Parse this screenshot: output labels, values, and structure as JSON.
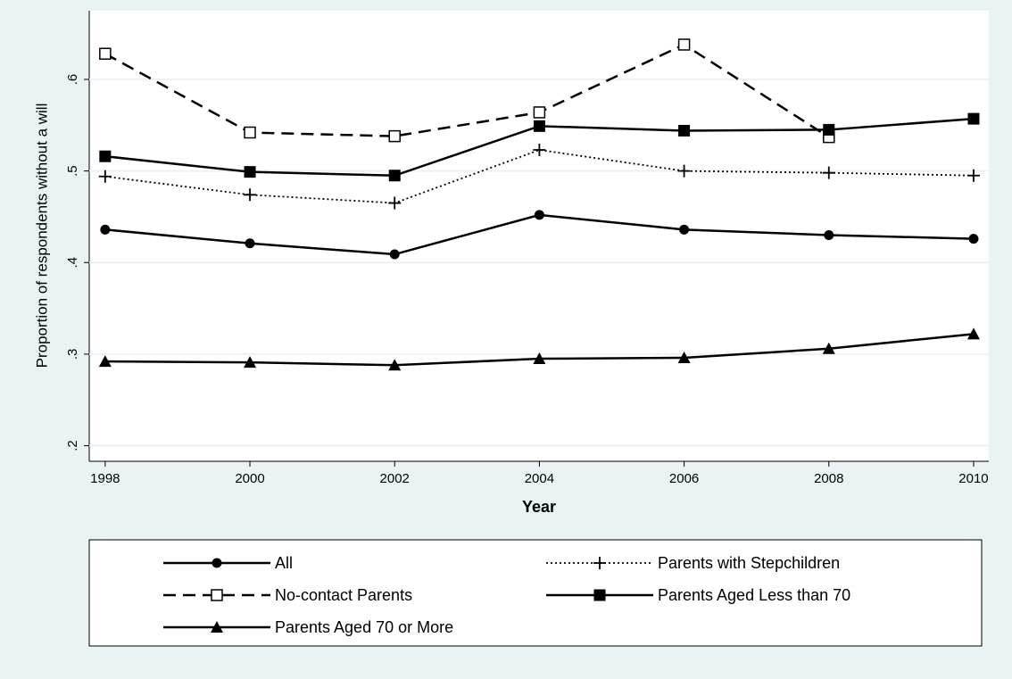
{
  "chart_data": {
    "type": "line",
    "x_label": "Year",
    "y_label": "Proportion of respondents without a will",
    "x": [
      1998,
      2000,
      2002,
      2004,
      2006,
      2008,
      2010
    ],
    "xlim": [
      1997.78,
      2010.21
    ],
    "xticks": [
      1998,
      2000,
      2002,
      2004,
      2006,
      2008,
      2010
    ],
    "ylim": [
      0.183,
      0.675
    ],
    "yticks": [
      {
        "value": 0.2,
        "label": ".2"
      },
      {
        "value": 0.3,
        "label": ".3"
      },
      {
        "value": 0.4,
        "label": ".4"
      },
      {
        "value": 0.5,
        "label": ".5"
      },
      {
        "value": 0.6,
        "label": ".6"
      }
    ],
    "grid": true,
    "series": [
      {
        "name": "All",
        "color": "#000000",
        "marker": "circle",
        "line": "solid",
        "values": [
          0.436,
          0.421,
          0.409,
          0.452,
          0.436,
          0.43,
          0.426
        ]
      },
      {
        "name": "Parents with Stepchildren",
        "color": "#000000",
        "marker": "plus",
        "line": "dotted",
        "values": [
          0.494,
          0.474,
          0.465,
          0.523,
          0.5,
          0.498,
          0.495
        ]
      },
      {
        "name": "No-contact Parents",
        "color": "#000000",
        "marker": "hollow-square",
        "line": "dashed",
        "values": [
          0.628,
          0.542,
          0.538,
          0.564,
          0.638,
          0.537,
          null
        ]
      },
      {
        "name": "Parents Aged Less than 70",
        "color": "#000000",
        "marker": "square",
        "line": "solid",
        "values": [
          0.516,
          0.499,
          0.495,
          0.549,
          0.544,
          0.545,
          0.557
        ]
      },
      {
        "name": "Parents Aged 70 or More",
        "color": "#000000",
        "marker": "triangle",
        "line": "solid",
        "values": [
          0.292,
          0.291,
          0.288,
          0.295,
          0.296,
          0.306,
          0.322
        ]
      }
    ]
  }
}
